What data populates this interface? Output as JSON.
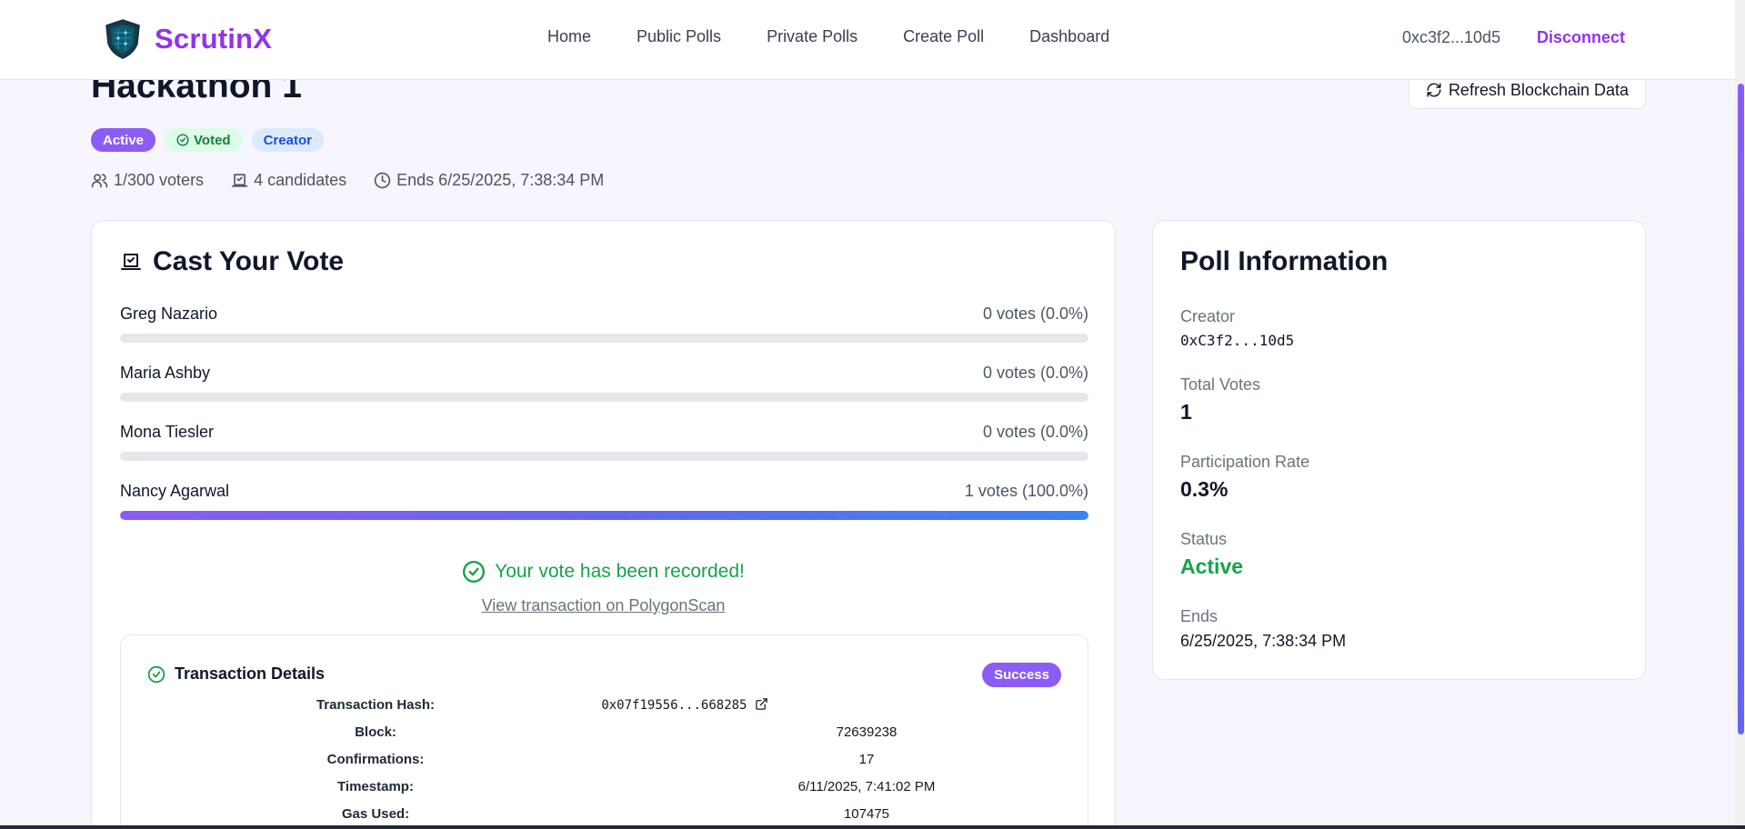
{
  "header": {
    "brand_name": "ScrutinX",
    "nav": [
      "Home",
      "Public Polls",
      "Private Polls",
      "Create Poll",
      "Dashboard"
    ],
    "wallet": "0xc3f2...10d5",
    "disconnect_label": "Disconnect"
  },
  "poll": {
    "title": "Hackathon 1",
    "refresh_label": "Refresh Blockchain Data",
    "badges": {
      "active": "Active",
      "voted": "Voted",
      "creator": "Creator"
    },
    "meta": {
      "voters": "1/300 voters",
      "candidates": "4 candidates",
      "ends": "Ends 6/25/2025, 7:38:34 PM"
    }
  },
  "vote_card": {
    "title": "Cast Your Vote",
    "candidates": [
      {
        "name": "Greg Nazario",
        "votes_text": "0 votes (0.0%)",
        "percent": 0
      },
      {
        "name": "Maria Ashby",
        "votes_text": "0 votes (0.0%)",
        "percent": 0
      },
      {
        "name": "Mona Tiesler",
        "votes_text": "0 votes (0.0%)",
        "percent": 0
      },
      {
        "name": "Nancy Agarwal",
        "votes_text": "1 votes (100.0%)",
        "percent": 100
      }
    ],
    "recorded_message": "Your vote has been recorded!",
    "tx_link": "View transaction on PolygonScan",
    "tx_details": {
      "title": "Transaction Details",
      "status": "Success",
      "rows": [
        {
          "label": "Transaction Hash:",
          "value": "0x07f19556...668285"
        },
        {
          "label": "Block:",
          "value": "72639238"
        },
        {
          "label": "Confirmations:",
          "value": "17"
        },
        {
          "label": "Timestamp:",
          "value": "6/11/2025, 7:41:02 PM"
        },
        {
          "label": "Gas Used:",
          "value": "107475"
        }
      ]
    }
  },
  "info_card": {
    "title": "Poll Information",
    "creator_label": "Creator",
    "creator_value": "0xC3f2...10d5",
    "total_votes_label": "Total Votes",
    "total_votes_value": "1",
    "participation_label": "Participation Rate",
    "participation_value": "0.3%",
    "status_label": "Status",
    "status_value": "Active",
    "ends_label": "Ends",
    "ends_value": "6/25/2025, 7:38:34 PM"
  },
  "colors": {
    "brand": "#9333ea",
    "accent": "#8b5cf6",
    "success": "#16a34a"
  }
}
